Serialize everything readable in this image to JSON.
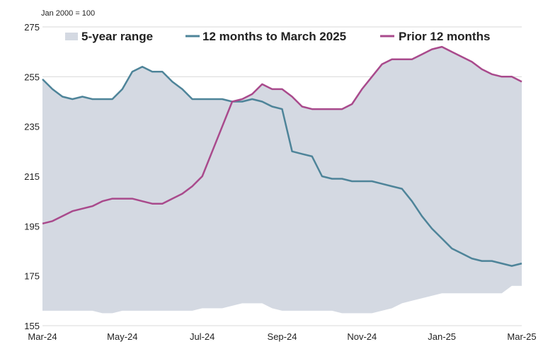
{
  "chart_data": {
    "type": "area",
    "ytitle": "Jan 2000 = 100",
    "ylim": [
      155,
      275
    ],
    "yticks": [
      155,
      175,
      195,
      215,
      235,
      255,
      275
    ],
    "x_range": [
      "2024-03",
      "2025-03"
    ],
    "x_tick_labels": [
      "Mar-24",
      "May-24",
      "Jul-24",
      "Sep-24",
      "Nov-24",
      "Jan-25",
      "Mar-25"
    ],
    "grid": "horizontal",
    "legend_position": "top",
    "legend": [
      {
        "label": "5-year range",
        "kind": "area",
        "color": "#d4d9e2"
      },
      {
        "label": "12 months to March 2025",
        "kind": "line",
        "color": "#4e8499"
      },
      {
        "label": "Prior 12 months",
        "kind": "line",
        "color": "#a94a8c"
      }
    ],
    "x": [
      0,
      0.25,
      0.5,
      0.75,
      1,
      1.25,
      1.5,
      1.75,
      2,
      2.25,
      2.5,
      2.75,
      3,
      3.25,
      3.5,
      3.75,
      4,
      4.25,
      4.5,
      4.75,
      5,
      5.25,
      5.5,
      5.75,
      6,
      6.25,
      6.5,
      6.75,
      7,
      7.25,
      7.5,
      7.75,
      8,
      8.25,
      8.5,
      8.75,
      9,
      9.25,
      9.5,
      9.75,
      10,
      10.25,
      10.5,
      10.75,
      11,
      11.25,
      11.5,
      11.75,
      12
    ],
    "series": [
      {
        "name": "12 months to March 2025",
        "color": "#4e8499",
        "values": [
          254,
          250,
          247,
          246,
          247,
          246,
          246,
          246,
          250,
          257,
          259,
          257,
          257,
          253,
          250,
          246,
          246,
          246,
          246,
          245,
          245,
          246,
          245,
          243,
          242,
          225,
          224,
          223,
          215,
          214,
          214,
          213,
          213,
          213,
          212,
          211,
          210,
          205,
          199,
          194,
          190,
          186,
          184,
          182,
          181,
          181,
          180,
          179,
          180
        ]
      },
      {
        "name": "Prior 12 months",
        "color": "#a94a8c",
        "values": [
          196,
          197,
          199,
          201,
          202,
          203,
          205,
          206,
          206,
          206,
          205,
          204,
          204,
          206,
          208,
          211,
          215,
          225,
          235,
          245,
          246,
          248,
          252,
          250,
          250,
          247,
          243,
          242,
          242,
          242,
          242,
          244,
          250,
          255,
          260,
          262,
          262,
          262,
          264,
          266,
          267,
          265,
          263,
          261,
          258,
          256,
          255,
          255,
          253
        ]
      }
    ],
    "range_band": {
      "name": "5-year range",
      "color": "#d4d9e2",
      "lower": [
        161,
        161,
        161,
        161,
        161,
        161,
        160,
        160,
        161,
        161,
        161,
        161,
        161,
        161,
        161,
        161,
        162,
        162,
        162,
        163,
        164,
        164,
        164,
        162,
        161,
        161,
        161,
        161,
        161,
        161,
        160,
        160,
        160,
        160,
        161,
        162,
        164,
        165,
        166,
        167,
        168,
        168,
        168,
        168,
        168,
        168,
        168,
        171,
        171
      ],
      "upper": [
        254,
        250,
        247,
        246,
        247,
        246,
        246,
        246,
        250,
        257,
        259,
        257,
        257,
        253,
        250,
        246,
        246,
        246,
        246,
        245,
        246,
        248,
        252,
        250,
        250,
        247,
        243,
        242,
        242,
        242,
        242,
        244,
        250,
        255,
        260,
        262,
        262,
        262,
        264,
        266,
        267,
        265,
        263,
        261,
        258,
        256,
        255,
        255,
        253
      ]
    }
  }
}
